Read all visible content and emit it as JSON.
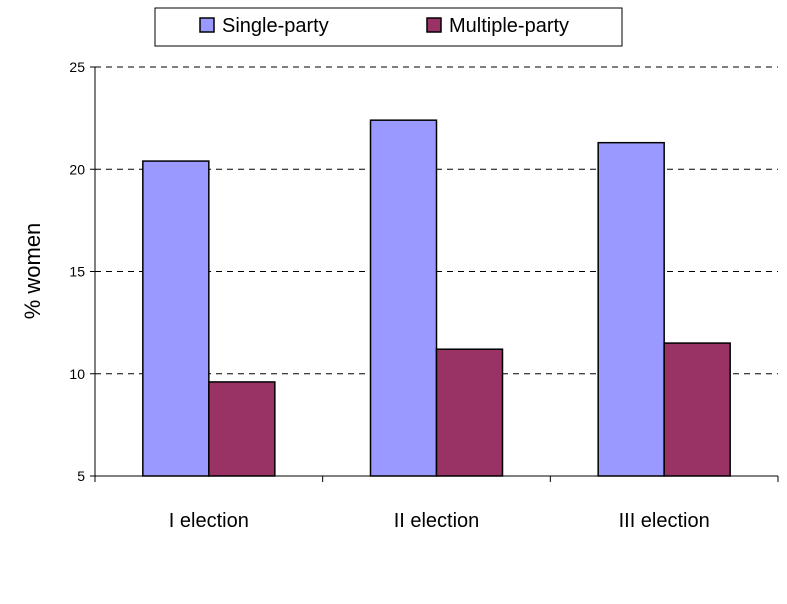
{
  "chart_data": {
    "type": "bar",
    "categories": [
      "I election",
      "II election",
      "III election"
    ],
    "series": [
      {
        "name": "Single-party",
        "values": [
          20.4,
          22.4,
          21.3
        ],
        "color": "#9999ff"
      },
      {
        "name": "Multiple-party",
        "values": [
          9.6,
          11.2,
          11.5
        ],
        "color": "#993366"
      }
    ],
    "ylabel": "% women",
    "xlabel": "",
    "ylim": [
      5,
      25
    ],
    "yticks": [
      5,
      10,
      15,
      20,
      25
    ],
    "grid": "horizontal dashed",
    "legend_position": "top"
  }
}
